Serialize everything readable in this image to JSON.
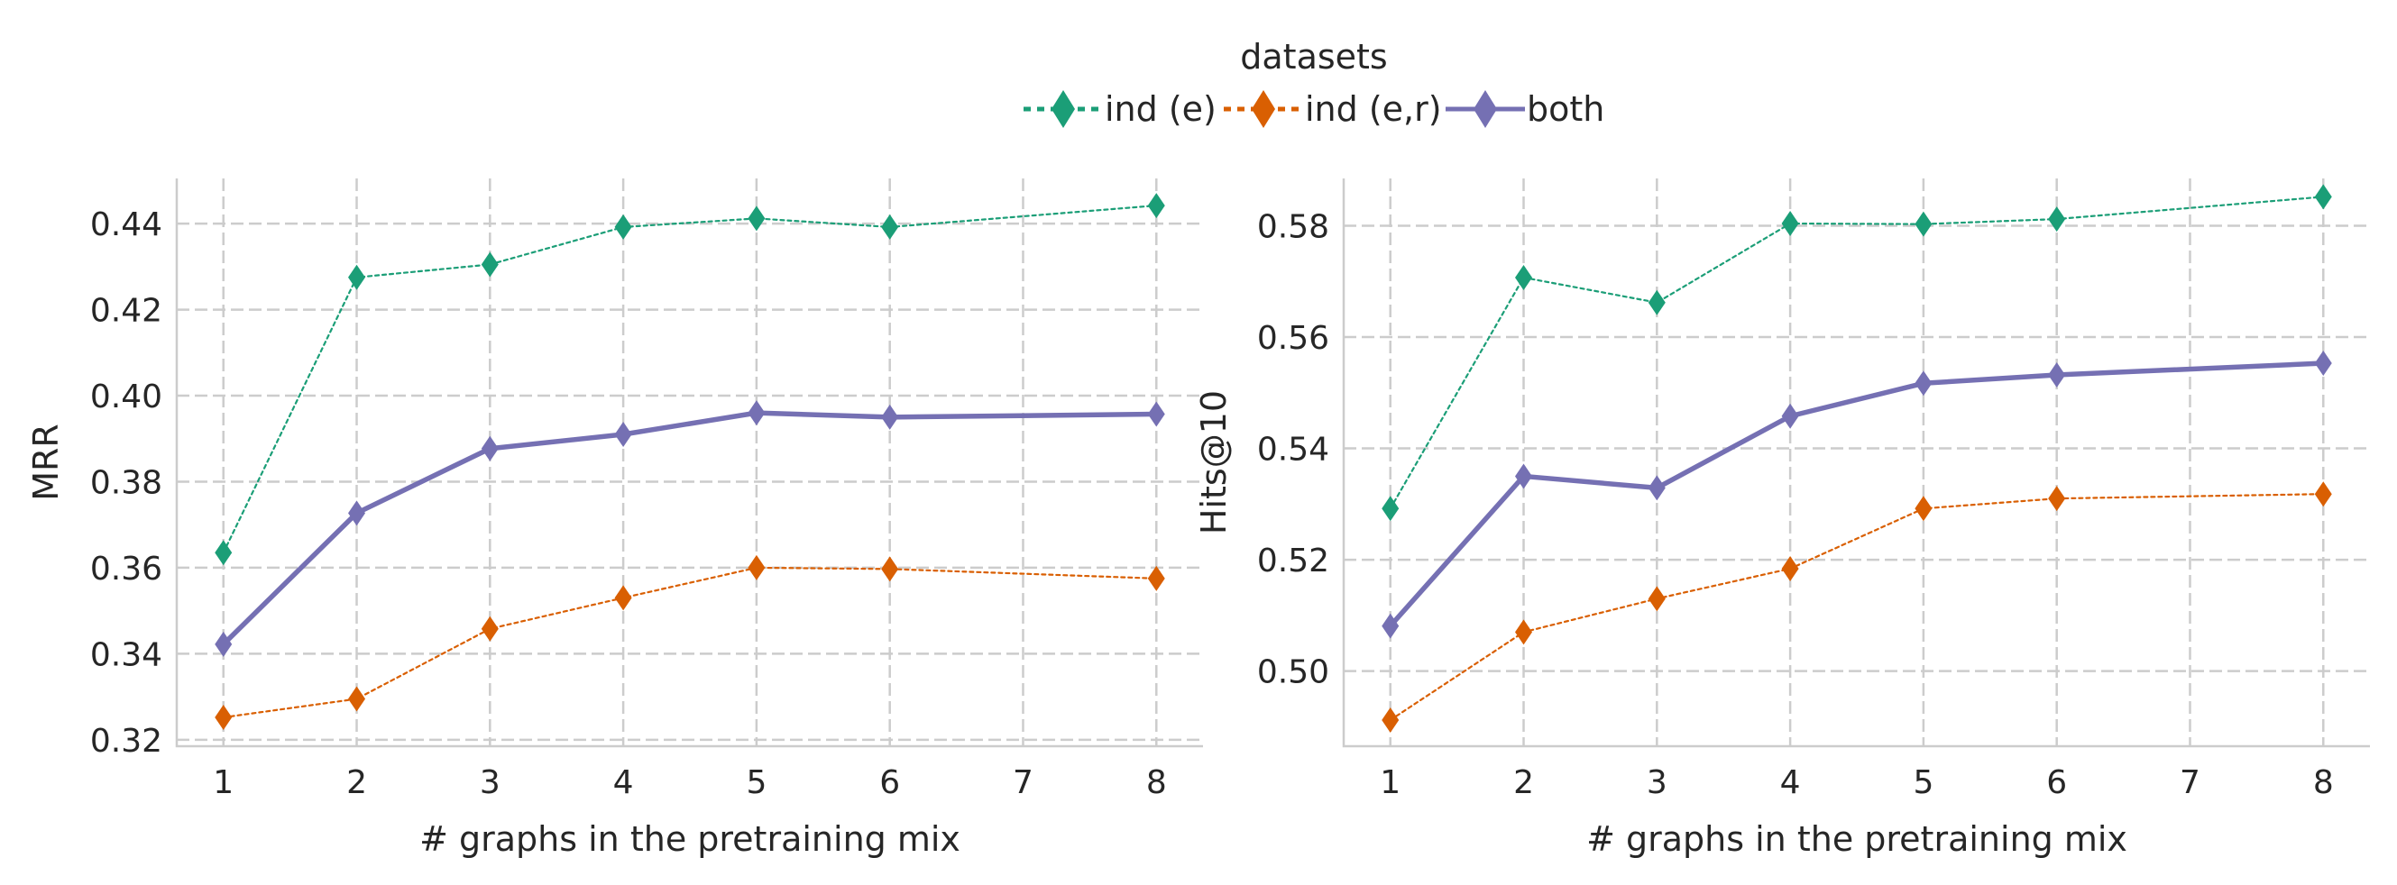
{
  "legend": {
    "title": "datasets",
    "entries": [
      {
        "label": "ind (e)",
        "color": "#1b9e77",
        "style": "dotted"
      },
      {
        "label": "ind (e,r)",
        "color": "#d95f02",
        "style": "dotted"
      },
      {
        "label": "both",
        "color": "#7570b3",
        "style": "solid"
      }
    ]
  },
  "chart_data": [
    {
      "type": "line",
      "xlabel": "# graphs in the pretraining mix",
      "ylabel": "MRR",
      "xlim": [
        0.65,
        8.35
      ],
      "ylim": [
        0.3185,
        0.4505
      ],
      "xticks": [
        1,
        2,
        3,
        4,
        5,
        6,
        7,
        8
      ],
      "yticks": [
        0.32,
        0.34,
        0.36,
        0.38,
        0.4,
        0.42,
        0.44
      ],
      "ytick_labels": [
        "0.32",
        "0.34",
        "0.36",
        "0.38",
        "0.40",
        "0.42",
        "0.44"
      ],
      "grid": true,
      "x": [
        1,
        2,
        3,
        4,
        5,
        6,
        8
      ],
      "series": [
        {
          "name": "ind (e)",
          "color": "#1b9e77",
          "style": "dotted",
          "values": [
            0.3635,
            0.4275,
            0.4305,
            0.4392,
            0.4412,
            0.4392,
            0.4442
          ]
        },
        {
          "name": "ind (e,r)",
          "color": "#d95f02",
          "style": "dotted",
          "values": [
            0.3252,
            0.3295,
            0.3458,
            0.353,
            0.36,
            0.3597,
            0.3575
          ]
        },
        {
          "name": "both",
          "color": "#7570b3",
          "style": "solid",
          "values": [
            0.3422,
            0.3727,
            0.3877,
            0.391,
            0.396,
            0.395,
            0.3957
          ]
        }
      ]
    },
    {
      "type": "line",
      "xlabel": "# graphs in the pretraining mix",
      "ylabel": "Hits@10",
      "xlim": [
        0.65,
        8.35
      ],
      "ylim": [
        0.4865,
        0.5885
      ],
      "xticks": [
        1,
        2,
        3,
        4,
        5,
        6,
        7,
        8
      ],
      "yticks": [
        0.5,
        0.52,
        0.54,
        0.56,
        0.58
      ],
      "ytick_labels": [
        "0.50",
        "0.52",
        "0.54",
        "0.56",
        "0.58"
      ],
      "grid": true,
      "x": [
        1,
        2,
        3,
        4,
        5,
        6,
        8
      ],
      "series": [
        {
          "name": "ind (e)",
          "color": "#1b9e77",
          "style": "dotted",
          "values": [
            0.5292,
            0.5707,
            0.5662,
            0.5804,
            0.5803,
            0.5812,
            0.5852
          ]
        },
        {
          "name": "ind (e,r)",
          "color": "#d95f02",
          "style": "dotted",
          "values": [
            0.4912,
            0.507,
            0.513,
            0.5184,
            0.5292,
            0.531,
            0.5318
          ]
        },
        {
          "name": "both",
          "color": "#7570b3",
          "style": "solid",
          "values": [
            0.5081,
            0.535,
            0.5329,
            0.5458,
            0.5517,
            0.5532,
            0.5553
          ]
        }
      ]
    }
  ]
}
